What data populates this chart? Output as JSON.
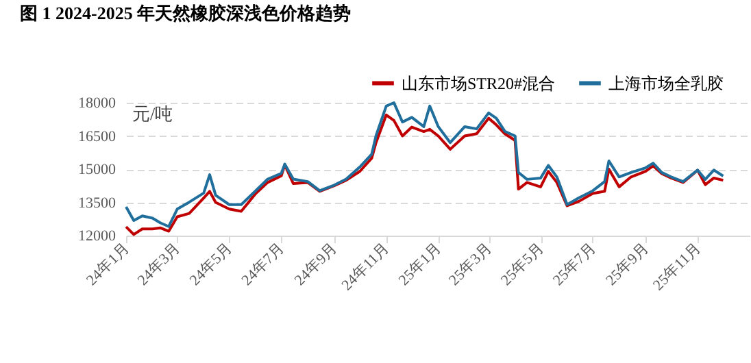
{
  "chart_data": {
    "type": "line",
    "title": "图 1 2024-2025 年天然橡胶深浅色价格趋势",
    "ylabel": "元/吨",
    "x": [
      "2024-01-01",
      "2024-01-10",
      "2024-01-20",
      "2024-02-01",
      "2024-02-10",
      "2024-02-20",
      "2024-03-01",
      "2024-03-15",
      "2024-04-01",
      "2024-04-08",
      "2024-04-15",
      "2024-05-01",
      "2024-05-15",
      "2024-06-01",
      "2024-06-15",
      "2024-07-01",
      "2024-07-05",
      "2024-07-15",
      "2024-08-01",
      "2024-08-15",
      "2024-09-01",
      "2024-09-15",
      "2024-10-01",
      "2024-10-15",
      "2024-10-20",
      "2024-11-01",
      "2024-11-10",
      "2024-11-20",
      "2024-12-01",
      "2024-12-15",
      "2024-12-22",
      "2025-01-01",
      "2025-01-15",
      "2025-02-01",
      "2025-02-15",
      "2025-03-01",
      "2025-03-10",
      "2025-03-20",
      "2025-04-01",
      "2025-04-05",
      "2025-04-15",
      "2025-05-01",
      "2025-05-10",
      "2025-05-20",
      "2025-06-01",
      "2025-06-15",
      "2025-07-01",
      "2025-07-15",
      "2025-07-20",
      "2025-08-01",
      "2025-08-15",
      "2025-09-01",
      "2025-09-10",
      "2025-09-20",
      "2025-10-01",
      "2025-10-15",
      "2025-11-01",
      "2025-11-10",
      "2025-11-20",
      "2025-12-01"
    ],
    "series": [
      {
        "name": "山东市场STR20#混合",
        "color": "#c00000",
        "values": [
          12400,
          12050,
          12300,
          12300,
          12350,
          12200,
          12850,
          13000,
          13700,
          14000,
          13500,
          13200,
          13100,
          13900,
          14400,
          14700,
          15200,
          14350,
          14400,
          14000,
          14250,
          14500,
          14900,
          15500,
          16200,
          17450,
          17200,
          16500,
          16900,
          16700,
          16800,
          16500,
          15900,
          16500,
          16600,
          17300,
          17000,
          16600,
          16300,
          14100,
          14400,
          14200,
          14900,
          14400,
          13350,
          13550,
          13900,
          14000,
          15000,
          14200,
          14650,
          14900,
          15150,
          14800,
          14600,
          14400,
          14950,
          14300,
          14600,
          14500
        ]
      },
      {
        "name": "上海市场全乳胶",
        "color": "#1f6e9c",
        "values": [
          13300,
          12680,
          12890,
          12790,
          12580,
          12410,
          13200,
          13510,
          13920,
          14750,
          13820,
          13400,
          13400,
          14030,
          14550,
          14810,
          15230,
          14550,
          14440,
          14030,
          14280,
          14550,
          15100,
          15680,
          16510,
          17850,
          18000,
          17130,
          17340,
          16920,
          17850,
          16920,
          16200,
          16920,
          16820,
          17540,
          17300,
          16710,
          16500,
          14850,
          14540,
          14600,
          15170,
          14650,
          13400,
          13710,
          14020,
          14440,
          15370,
          14650,
          14850,
          15060,
          15270,
          14850,
          14650,
          14440,
          14960,
          14540,
          14960,
          14690
        ]
      }
    ],
    "xlim": [
      "2024-01-01",
      "2026-01-01"
    ],
    "xticks": [
      {
        "value": "2024-01-01",
        "label": "24年1月"
      },
      {
        "value": "2024-03-01",
        "label": "24年3月"
      },
      {
        "value": "2024-05-01",
        "label": "24年5月"
      },
      {
        "value": "2024-07-01",
        "label": "24年7月"
      },
      {
        "value": "2024-09-01",
        "label": "24年9月"
      },
      {
        "value": "2024-11-01",
        "label": "24年11月"
      },
      {
        "value": "2025-01-01",
        "label": "25年1月"
      },
      {
        "value": "2025-03-01",
        "label": "25年3月"
      },
      {
        "value": "2025-05-01",
        "label": "25年5月"
      },
      {
        "value": "2025-07-01",
        "label": "25年7月"
      },
      {
        "value": "2025-09-01",
        "label": "25年9月"
      },
      {
        "value": "2025-11-01",
        "label": "25年11月"
      }
    ],
    "ylim": [
      12000,
      18000
    ],
    "yticks": [
      12000,
      13500,
      15000,
      16500,
      18000
    ],
    "grid": "y",
    "legend": "top right",
    "line_style": "solid"
  }
}
